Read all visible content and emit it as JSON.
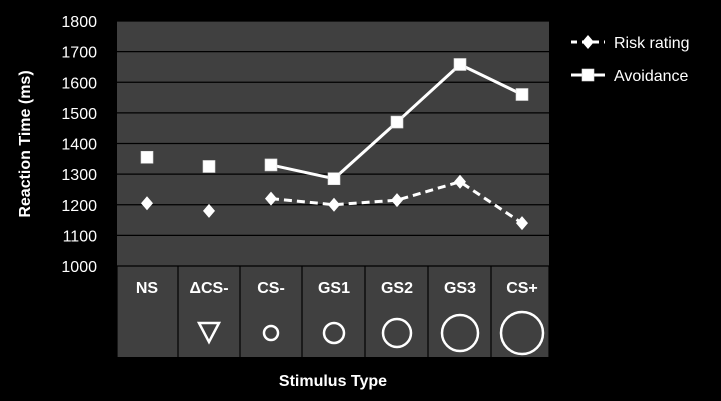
{
  "chart_data": {
    "type": "line",
    "title": "",
    "xlabel": "Stimulus Type",
    "ylabel": "Reaction Time (ms)",
    "ylim": [
      1000,
      1800
    ],
    "yticks": [
      1000,
      1100,
      1200,
      1300,
      1400,
      1500,
      1600,
      1700,
      1800
    ],
    "categories": [
      "NS",
      "ΔCS-",
      "CS-",
      "GS1",
      "GS2",
      "GS3",
      "CS+"
    ],
    "category_symbols": [
      "none",
      "triangle-down-icon",
      "circle-xs-icon",
      "circle-s-icon",
      "circle-m-icon",
      "circle-l-icon",
      "circle-xl-icon"
    ],
    "grid": true,
    "legend_position": "right",
    "background": "#404040",
    "series": [
      {
        "name": "Risk rating",
        "marker": "diamond",
        "line_style": "dashed",
        "color": "#ffffff",
        "values": [
          1205,
          1180,
          1220,
          1200,
          1215,
          1275,
          1140
        ],
        "connected_from_index": 2
      },
      {
        "name": "Avoidance",
        "marker": "square",
        "line_style": "solid",
        "color": "#ffffff",
        "values": [
          1355,
          1325,
          1330,
          1285,
          1470,
          1658,
          1560
        ],
        "connected_from_index": 2
      }
    ]
  }
}
